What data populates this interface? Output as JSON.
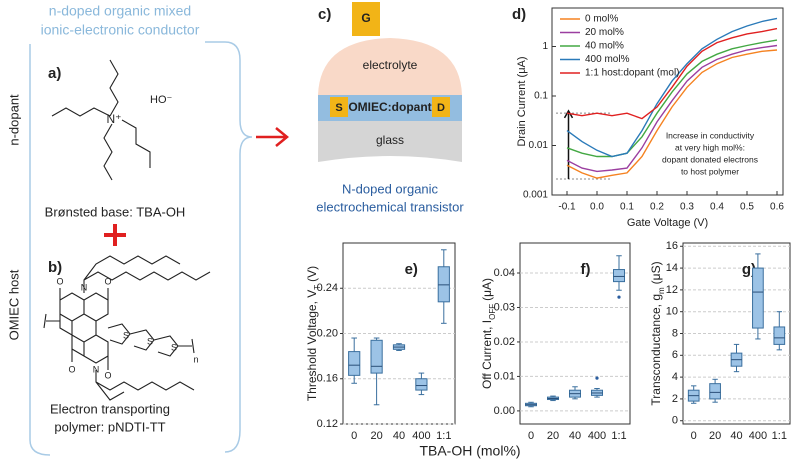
{
  "heading": [
    "n-doped organic mixed",
    "ionic-electronic conductor"
  ],
  "panel_a": {
    "label": "a)",
    "side_label": "n-dopant",
    "atoms": [
      "N⁺",
      "HO⁻"
    ],
    "caption": "Brønsted base: TBA-OH"
  },
  "panel_b": {
    "label": "b)",
    "side_label": "OMIEC host",
    "atoms": [
      "O",
      "O",
      "O",
      "O",
      "N",
      "N",
      "S",
      "S",
      "S",
      "n"
    ],
    "caption": [
      "Electron transporting",
      "polymer: pNDTI-TT"
    ]
  },
  "panel_c": {
    "label": "c)",
    "gate": "G",
    "electrolyte": "electrolyte",
    "source": "S",
    "drain": "D",
    "channel": "OMIEC:dopant",
    "substrate": "glass",
    "caption": [
      "N-doped organic",
      "electrochemical transistor"
    ]
  },
  "shared_xlabel": "TBA-OH (mol%)",
  "chart_data": [
    {
      "type": "line",
      "label": "d)",
      "xlabel": "Gate Voltage (V)",
      "ylabel": "Drain Current (μA)",
      "x": [
        -0.1,
        -0.05,
        0,
        0.05,
        0.1,
        0.15,
        0.2,
        0.25,
        0.3,
        0.35,
        0.4,
        0.45,
        0.5,
        0.55,
        0.6
      ],
      "xlim": [
        -0.15,
        0.62
      ],
      "xticks": [
        -0.1,
        {
          "value": 0,
          "label": "0.0"
        },
        0.1,
        0.2,
        0.3,
        0.4,
        0.5,
        0.6
      ],
      "ylim": [
        0.001,
        6
      ],
      "yticks": [
        0.001,
        0.01,
        0.1,
        1
      ],
      "yscale": "log",
      "legend": "top-left",
      "series": [
        {
          "name": "0 mol%",
          "color": "#f58220",
          "values": [
            0.004,
            0.0028,
            0.0022,
            0.0025,
            0.0028,
            0.006,
            0.02,
            0.06,
            0.15,
            0.3,
            0.45,
            0.6,
            0.7,
            0.8,
            0.85
          ]
        },
        {
          "name": "20 mol%",
          "color": "#9b3fa0",
          "values": [
            0.005,
            0.0035,
            0.003,
            0.0032,
            0.0035,
            0.009,
            0.03,
            0.08,
            0.2,
            0.38,
            0.55,
            0.7,
            0.85,
            0.95,
            1.05
          ]
        },
        {
          "name": "40 mol%",
          "color": "#43a843",
          "values": [
            0.009,
            0.007,
            0.006,
            0.006,
            0.007,
            0.015,
            0.045,
            0.12,
            0.28,
            0.5,
            0.7,
            0.9,
            1.05,
            1.2,
            1.35
          ]
        },
        {
          "name": "400 mol%",
          "color": "#2a7ab9",
          "values": [
            0.02,
            0.012,
            0.008,
            0.006,
            0.007,
            0.02,
            0.07,
            0.2,
            0.45,
            0.9,
            1.4,
            2.0,
            2.6,
            3.2,
            3.7
          ]
        },
        {
          "name": "1:1 host:dopant (mol)",
          "color": "#e02020",
          "values": [
            0.045,
            0.04,
            0.045,
            0.04,
            0.045,
            0.035,
            0.06,
            0.15,
            0.4,
            0.8,
            1.2,
            1.5,
            1.8,
            2.0,
            2.3
          ]
        }
      ],
      "annotation": [
        "Increase in conductivity",
        "at very high mol%:",
        "dopant donated electrons",
        "to host polymer"
      ]
    },
    {
      "type": "box",
      "label": "e)",
      "ylabel": [
        "Threshold Voltage, V",
        "T",
        "(V)"
      ],
      "color": "#9cc3e6",
      "grid": true,
      "categories": [
        "0",
        "20",
        "40",
        "400",
        "1:1"
      ],
      "ylim": [
        0.12,
        0.28
      ],
      "yticks": [
        0.12,
        0.16,
        {
          "value": 0.2,
          "label": "0.20"
        },
        0.24
      ],
      "whisker_low": [
        0.156,
        0.137,
        0.185,
        0.146,
        0.209
      ],
      "q1": [
        0.163,
        0.165,
        0.186,
        0.15,
        0.228
      ],
      "median": [
        0.172,
        0.171,
        0.188,
        0.154,
        0.243
      ],
      "q3": [
        0.184,
        0.194,
        0.19,
        0.16,
        0.259
      ],
      "whisker_high": [
        0.196,
        0.196,
        0.191,
        0.165,
        0.274
      ],
      "outliers": [
        [],
        [],
        [],
        [],
        []
      ]
    },
    {
      "type": "box",
      "label": "f)",
      "ylabel": [
        "Off Current, I",
        "OFF",
        "(μA)"
      ],
      "color": "#9cc3e6",
      "grid": true,
      "categories": [
        "0",
        "20",
        "40",
        "400",
        "1:1"
      ],
      "ylim": [
        -0.0038,
        0.0487
      ],
      "yticks": [
        {
          "value": 0,
          "label": "0.00"
        },
        0.01,
        0.02,
        0.03,
        0.04
      ],
      "whisker_low": [
        0.0012,
        0.003,
        0.0035,
        0.004,
        0.035
      ],
      "q1": [
        0.0015,
        0.0033,
        0.004,
        0.0045,
        0.0375
      ],
      "median": [
        0.0018,
        0.0036,
        0.005,
        0.0052,
        0.039
      ],
      "q3": [
        0.0022,
        0.004,
        0.006,
        0.006,
        0.041
      ],
      "whisker_high": [
        0.0025,
        0.0043,
        0.007,
        0.0065,
        0.045
      ],
      "outliers": [
        [],
        [],
        [],
        [
          0.0095
        ],
        [
          0.033
        ]
      ]
    },
    {
      "type": "box",
      "label": "g)",
      "ylabel": [
        "Transconductance, g",
        "m",
        "(μS)"
      ],
      "color": "#9cc3e6",
      "grid": true,
      "categories": [
        "0",
        "20",
        "40",
        "400",
        "1:1"
      ],
      "ylim": [
        -0.3,
        16.3
      ],
      "yticks": [
        0,
        2,
        4,
        6,
        8,
        10,
        12,
        14,
        16
      ],
      "whisker_low": [
        1.6,
        1.7,
        4.5,
        7.5,
        6.5
      ],
      "q1": [
        1.8,
        2.0,
        5.0,
        8.5,
        7.0
      ],
      "median": [
        2.3,
        2.6,
        5.6,
        11.8,
        7.6
      ],
      "q3": [
        2.8,
        3.4,
        6.2,
        14.0,
        8.6
      ],
      "whisker_high": [
        3.2,
        3.8,
        7.0,
        15.3,
        10.0
      ],
      "outliers": [
        [],
        [],
        [],
        [],
        []
      ]
    }
  ]
}
